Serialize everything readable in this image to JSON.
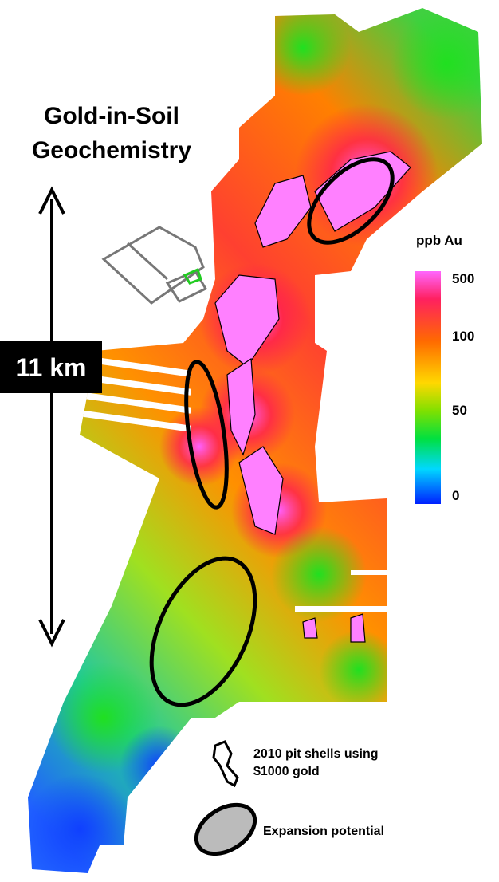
{
  "title": [
    "Gold-in-Soil",
    "Geochemistry"
  ],
  "scale_bar": {
    "label": "11 km"
  },
  "colorbar": {
    "title": "ppb Au",
    "ticks": [
      "500",
      "100",
      "50",
      "0"
    ]
  },
  "legend": [
    {
      "lines": [
        "2010 pit shells using",
        "$1000 gold"
      ]
    },
    {
      "lines": [
        "Expansion potential"
      ]
    }
  ]
}
